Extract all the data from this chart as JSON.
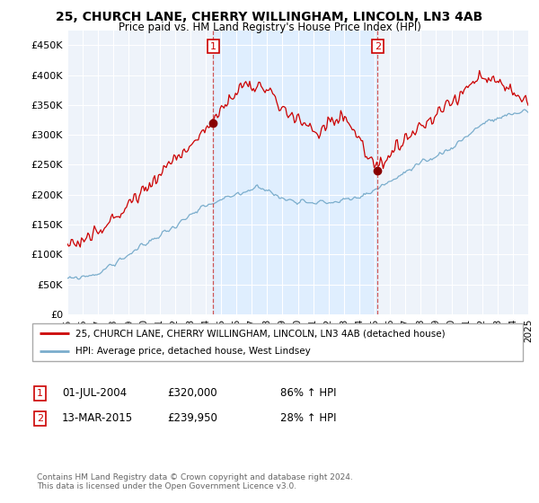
{
  "title": "25, CHURCH LANE, CHERRY WILLINGHAM, LINCOLN, LN3 4AB",
  "subtitle": "Price paid vs. HM Land Registry's House Price Index (HPI)",
  "ylim": [
    0,
    475000
  ],
  "yticks": [
    0,
    50000,
    100000,
    150000,
    200000,
    250000,
    300000,
    350000,
    400000,
    450000
  ],
  "ytick_labels": [
    "£0",
    "£50K",
    "£100K",
    "£150K",
    "£200K",
    "£250K",
    "£300K",
    "£350K",
    "£400K",
    "£450K"
  ],
  "sale1_date": 2004.5,
  "sale1_price": 320000,
  "sale2_date": 2015.2,
  "sale2_price": 239950,
  "sale1_info_date": "01-JUL-2004",
  "sale1_info_price": "£320,000",
  "sale1_info_hpi": "86% ↑ HPI",
  "sale2_info_date": "13-MAR-2015",
  "sale2_info_price": "£239,950",
  "sale2_info_hpi": "28% ↑ HPI",
  "red_color": "#cc0000",
  "blue_color": "#7aadcc",
  "shade_color": "#ddeeff",
  "dashed_color": "#cc4444",
  "bg_color": "#eef3fa",
  "grid_color": "#ffffff",
  "legend_line1": "25, CHURCH LANE, CHERRY WILLINGHAM, LINCOLN, LN3 4AB (detached house)",
  "legend_line2": "HPI: Average price, detached house, West Lindsey",
  "footer": "Contains HM Land Registry data © Crown copyright and database right 2024.\nThis data is licensed under the Open Government Licence v3.0.",
  "xstart": 1995,
  "xend": 2025
}
